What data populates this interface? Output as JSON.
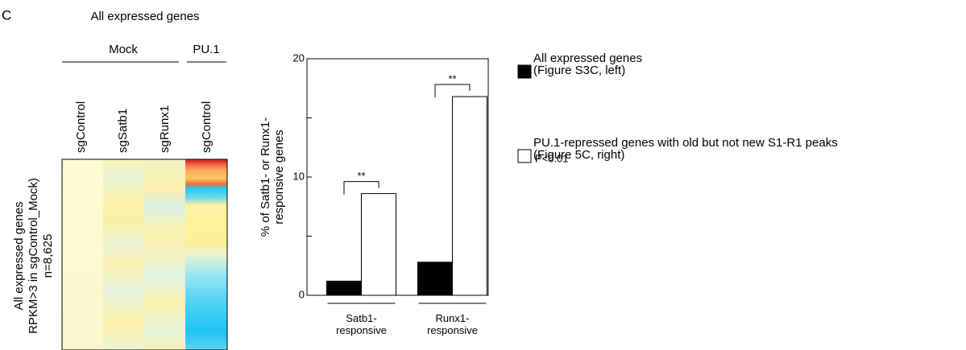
{
  "panel_label": "C",
  "heatmap": {
    "title": "All expressed genes",
    "groups": [
      "Mock",
      "PU.1"
    ],
    "columns": [
      "sgControl",
      "sgSatb1",
      "sgRunx1",
      "sgControl"
    ],
    "row_label": [
      "All expressed genes",
      "RPKM>3 in sgControl_Mock)",
      "n=8,625"
    ]
  },
  "chart_data": {
    "type": "bar",
    "ylabel": "% of Satb1- or Runx1-\nresponsive genes",
    "categories": [
      "Satb1- responsive",
      "Runx1- responsive"
    ],
    "series": [
      {
        "name": "All expressed genes\n(Figure S3C, left)",
        "color": "#000000",
        "values": [
          1.2,
          2.8
        ]
      },
      {
        "name": "PU.1-repressed genes with old but not new S1-R1 peaks\n(Figure 5C, right)",
        "color": "#ffffff",
        "values": [
          8.6,
          16.8
        ]
      }
    ],
    "ylim": [
      0,
      20
    ],
    "yticks": [
      0,
      10,
      20
    ],
    "yminorticks": [
      5,
      15
    ],
    "annotations": [
      "**",
      "**"
    ],
    "note": "** : P<0.01"
  }
}
